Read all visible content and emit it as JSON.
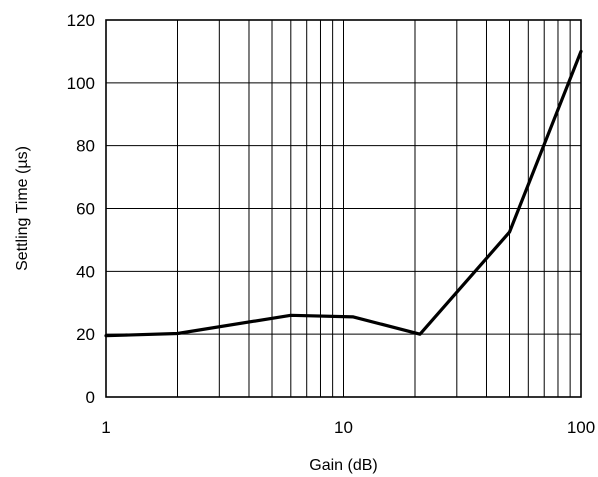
{
  "chart_data": {
    "type": "line",
    "title": "",
    "xlabel": "Gain (dB)",
    "ylabel": "Settling Time (µs)",
    "x_scale": "log",
    "xlim": [
      1,
      100
    ],
    "ylim": [
      0,
      120
    ],
    "x_ticks": [
      1,
      10,
      100
    ],
    "x_tick_labels": [
      "1",
      "10",
      "100"
    ],
    "y_ticks": [
      0,
      20,
      40,
      60,
      80,
      100,
      120
    ],
    "y_tick_labels": [
      "0",
      "20",
      "40",
      "60",
      "80",
      "100",
      "120"
    ],
    "grid": true,
    "legend": "none",
    "series": [
      {
        "x": [
          1,
          2,
          6,
          11,
          21,
          50,
          100
        ],
        "y": [
          19.5,
          20.2,
          26,
          25.5,
          20,
          52.5,
          110
        ]
      }
    ]
  }
}
